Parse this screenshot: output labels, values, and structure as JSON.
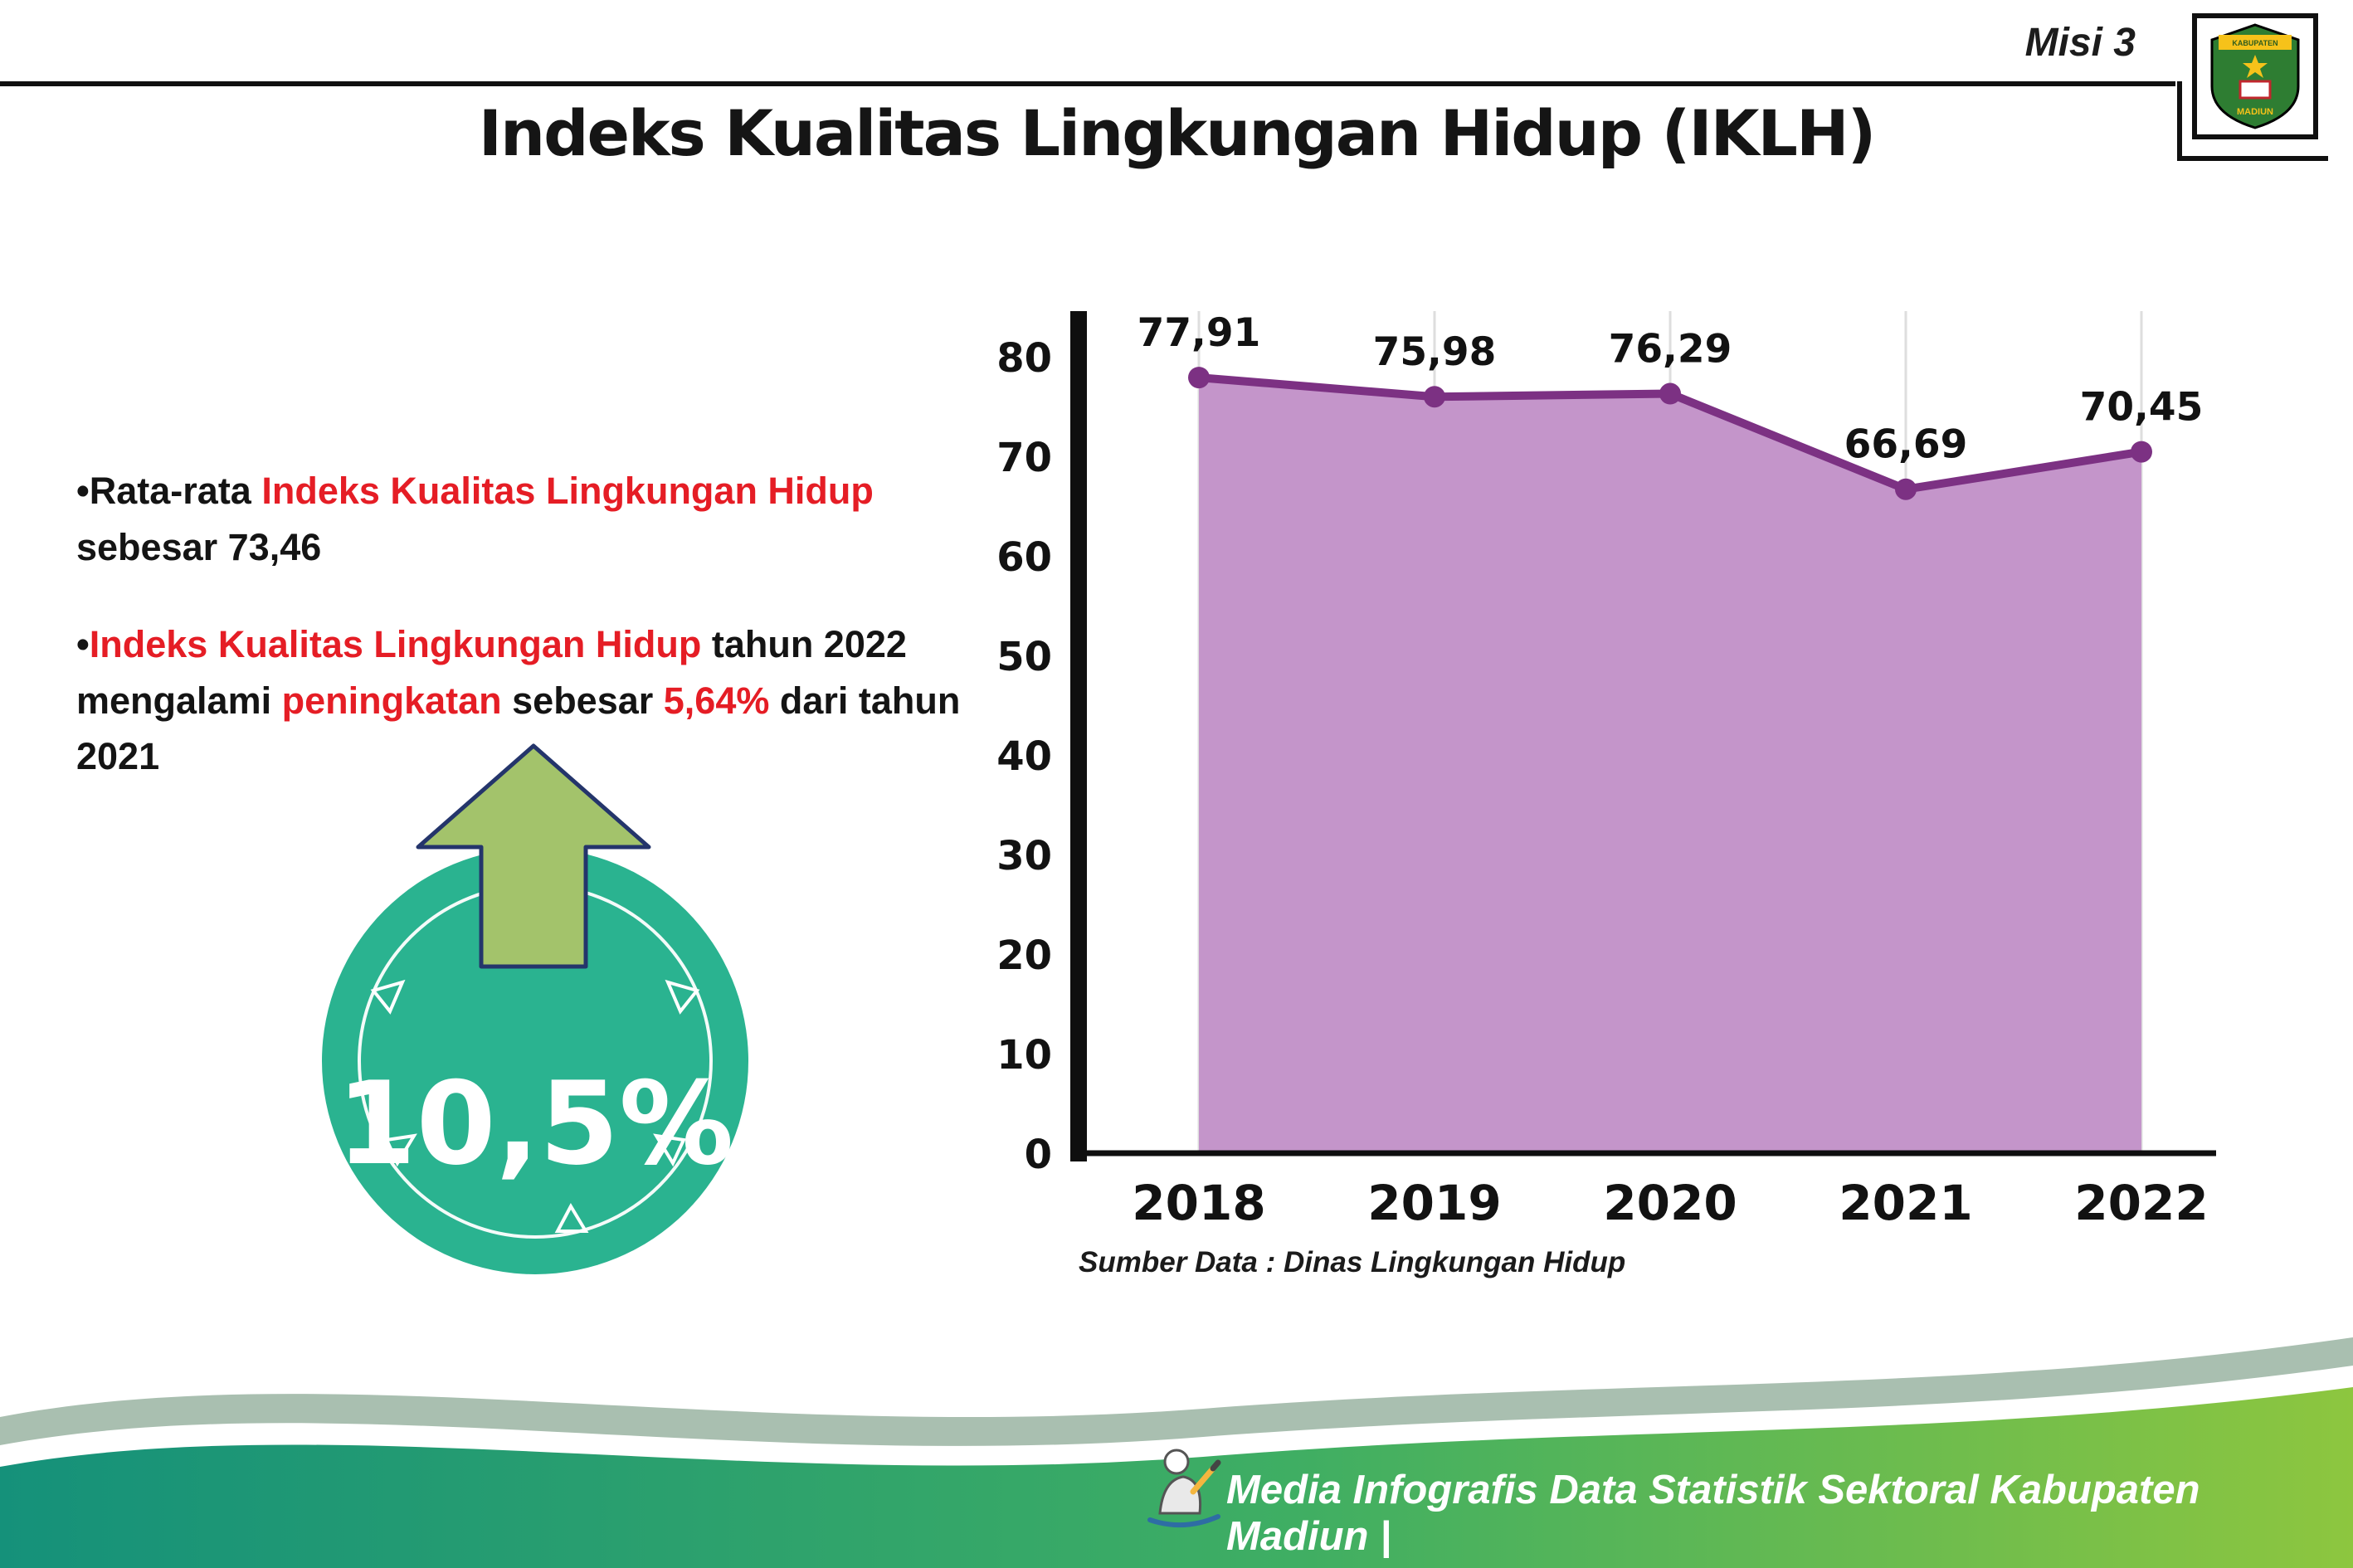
{
  "header": {
    "misi_label": "Misi 3",
    "title": "Indeks Kualitas Lingkungan Hidup (IKLH)"
  },
  "logo": {
    "top_text": "KABUPATEN",
    "bottom_text": "MADIUN"
  },
  "bullets": {
    "marker": "•",
    "b1": {
      "p1": "Rata-rata ",
      "p2": "Indeks Kualitas Lingkungan Hidup",
      "p3": " sebesar 73,46"
    },
    "b2": {
      "p1": "Indeks Kualitas Lingkungan Hidup",
      "p2": " tahun 2022 mengalami ",
      "p3": "peningkatan",
      "p4": " sebesar ",
      "p5": "5,64%",
      "p6": " dari tahun 2021"
    }
  },
  "badge": {
    "value": "10,5%"
  },
  "chart_data": {
    "type": "area",
    "title": "Indeks Kualitas Lingkungan Hidup (IKLH)",
    "categories": [
      "2018",
      "2019",
      "2020",
      "2021",
      "2022"
    ],
    "values": [
      77.91,
      75.98,
      76.29,
      66.69,
      70.45
    ],
    "value_labels": [
      "77,91",
      "75,98",
      "76,29",
      "66,69",
      "70,45"
    ],
    "ylim": [
      0,
      80
    ],
    "yticks": [
      0,
      10,
      20,
      30,
      40,
      50,
      60,
      70,
      80
    ],
    "grid": "vertical",
    "legend": "none",
    "line_color": "#7c3183",
    "point_color": "#7c3183",
    "fill_color": "#c495ca",
    "source": "Sumber Data : Dinas Lingkungan Hidup"
  },
  "footer": {
    "text": "Media Infografis Data Statistik Sektoral Kabupaten Madiun |"
  },
  "colors": {
    "accent_red": "#e51d25",
    "badge_teal": "#2ab390",
    "arrow_green": "#a3c36b",
    "wave_sage": "#a9bfb0",
    "wave_green_start": "#15917a",
    "wave_green_end": "#8dc63f"
  }
}
